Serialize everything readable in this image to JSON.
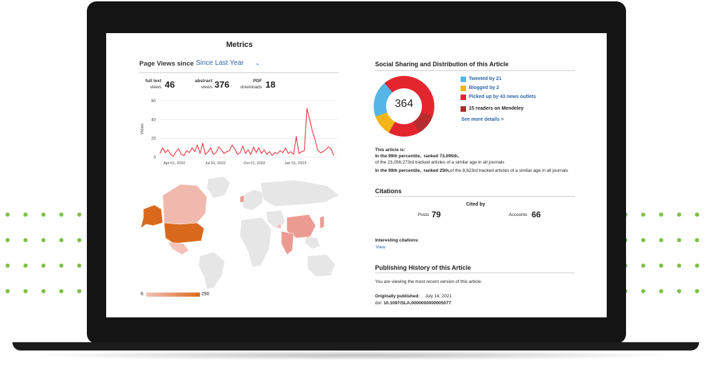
{
  "metrics": {
    "title": "Metrics",
    "page_views_label": "Page Views since",
    "range_select": "Since Last Year",
    "stats": [
      {
        "label_line1": "full text",
        "label_line2": "views",
        "value": "46"
      },
      {
        "label_line1": "abstract",
        "label_line2": "views",
        "value": "376"
      },
      {
        "label_line1": "PDF",
        "label_line2": "downloads",
        "value": "18"
      }
    ]
  },
  "chart_data": {
    "type": "line",
    "ylabel": "Views",
    "ylim": [
      0,
      60
    ],
    "yticks": [
      "60",
      "40",
      "20",
      "0"
    ],
    "xticks": [
      "Apr 01, 2022",
      "Jul 01, 2022",
      "Oct 01, 2022",
      "Jan 01, 2023",
      "Apr 01, 2023"
    ],
    "series": [
      {
        "color": "#e8313a",
        "values": [
          4,
          10,
          5,
          8,
          3,
          1,
          6,
          9,
          3,
          2,
          7,
          5,
          10,
          6,
          13,
          4,
          15,
          3,
          6,
          10,
          3,
          5,
          11,
          8,
          4,
          6,
          7,
          13,
          9,
          3,
          5,
          12,
          4,
          8,
          3,
          11,
          5,
          10,
          4,
          8,
          3,
          6,
          2,
          5,
          4,
          7,
          5,
          10,
          4,
          6,
          3,
          22,
          4,
          6,
          7,
          52,
          40,
          28,
          19,
          8,
          5,
          6,
          8,
          11,
          9,
          2
        ]
      }
    ]
  },
  "map": {
    "legend_min": "6",
    "legend_max": "290"
  },
  "social": {
    "title": "Social Sharing and Distribution of this Article",
    "score": "364",
    "items": [
      {
        "label": "Tweeted by 21",
        "color": "#55b6e5"
      },
      {
        "label": "Blogged by 2",
        "color": "#f1b51a"
      },
      {
        "label": "Picked up by 43 news outlets",
        "color": "#e3262e"
      },
      {
        "label": "15 readers on Mendeley",
        "color": "#a72c2c"
      }
    ],
    "more_link": "See more details >",
    "this_article_is": "This article is:",
    "line1a": "In the 99th percentile,",
    "line1b": "ranked 73,095th,",
    "line1c": "of the 23,056,273rd tracked articles of a similar age in all journals",
    "line2a": "In the 99th percentile,",
    "line2b": "ranked 25th,",
    "line2c": "of the 8,623rd tracked articles of a similar age in all journals"
  },
  "citations": {
    "title": "Citations",
    "cited_by": "Cited by",
    "posts_label": "Posts",
    "posts_value": "79",
    "accounts_label": "Accounts",
    "accounts_value": "66",
    "interesting_label": "Interesting citations:",
    "view_link": "View"
  },
  "history": {
    "title": "Publishing History of this Article",
    "note": "You are viewing the most recent version of this article.",
    "published_label": "Originally published:",
    "published_date": "July 14, 2021",
    "doi_label": "doi:",
    "doi_value": "10.1097/SLA.0000000000005077"
  }
}
